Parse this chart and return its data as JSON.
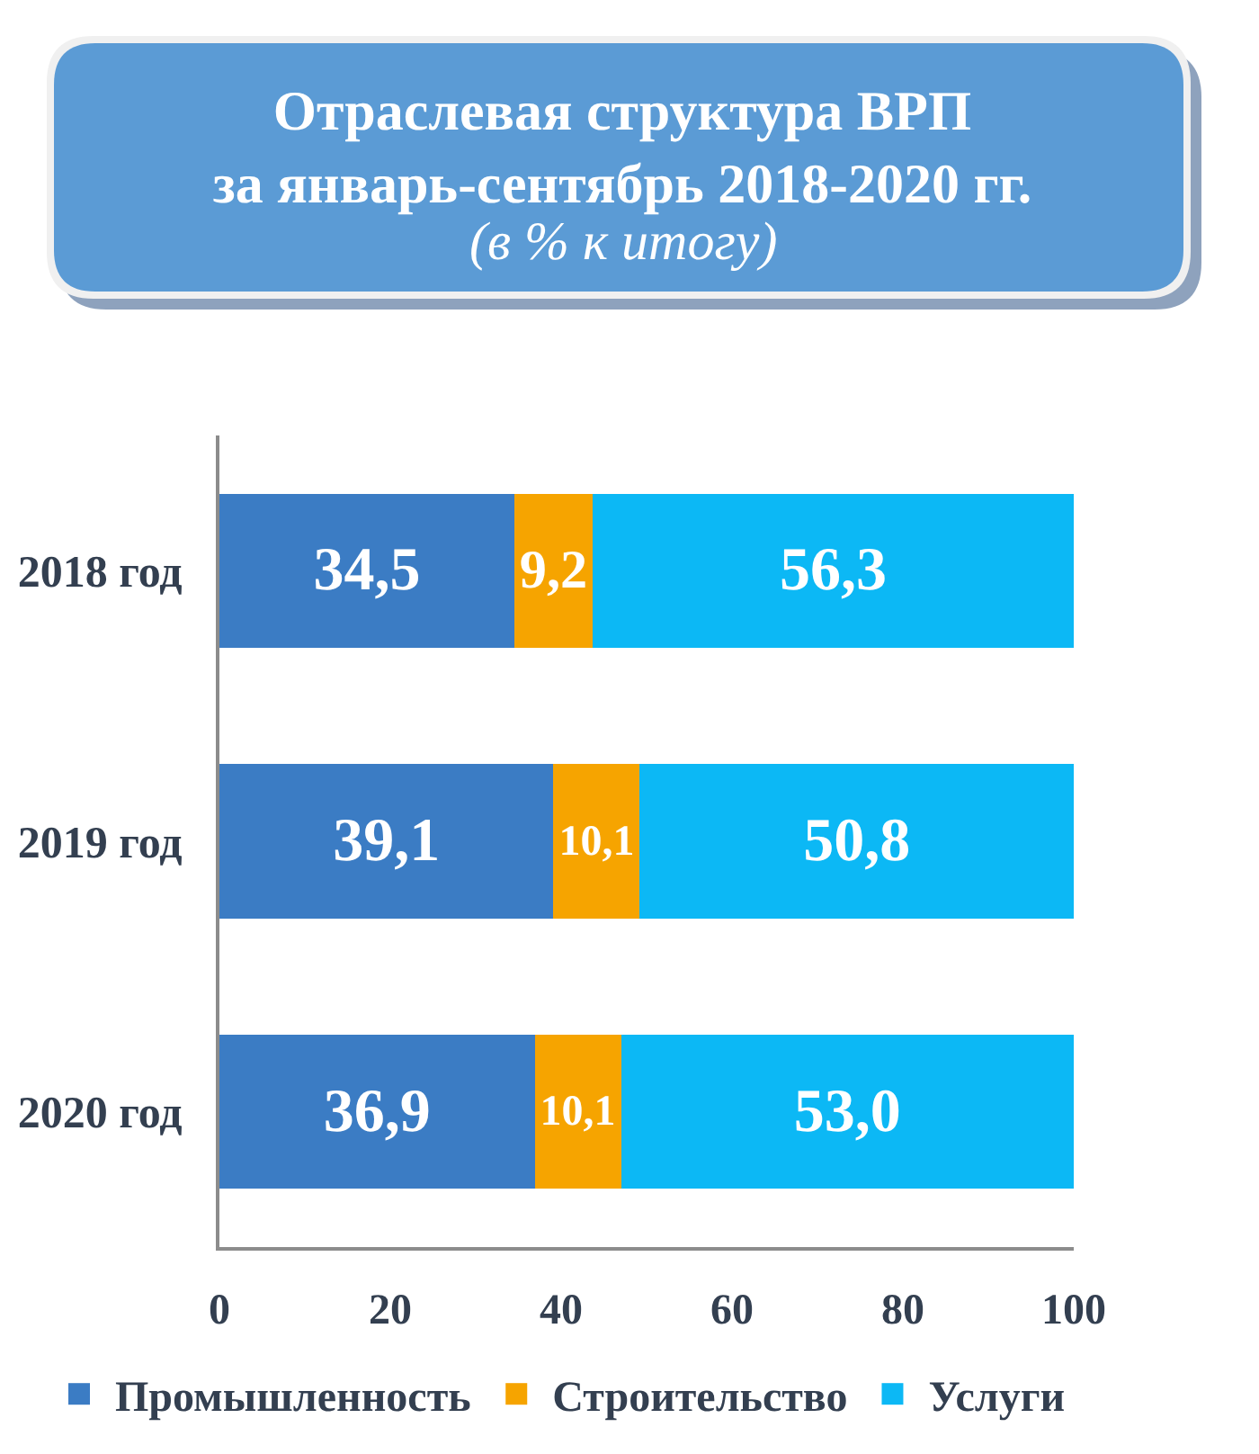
{
  "chart_data": {
    "type": "bar",
    "orientation": "horizontal",
    "stacked": true,
    "title": "Отраслевая структура ВРП\nза январь-сентябрь 2018-2020 гг.",
    "subtitle": "(в % к итогу)",
    "categories": [
      "2018 год",
      "2019 год",
      "2020 год"
    ],
    "series": [
      {
        "name": "Промышленность",
        "color": "#3b7cc4",
        "values": [
          34.5,
          39.1,
          36.9
        ],
        "value_labels": [
          "34,5",
          "39,1",
          "36,9"
        ]
      },
      {
        "name": "Строительство",
        "color": "#f6a400",
        "values": [
          9.2,
          10.1,
          10.1
        ],
        "value_labels": [
          "9,2",
          "10,1",
          "10,1"
        ]
      },
      {
        "name": "Услуги",
        "color": "#0cb8f5",
        "values": [
          56.3,
          50.8,
          53.0
        ],
        "value_labels": [
          "56,3",
          "50,8",
          "53,0"
        ]
      }
    ],
    "xlim": [
      0,
      100
    ],
    "xticks": [
      0,
      20,
      40,
      60,
      80,
      100
    ],
    "grid": false,
    "legend": "bottom"
  }
}
